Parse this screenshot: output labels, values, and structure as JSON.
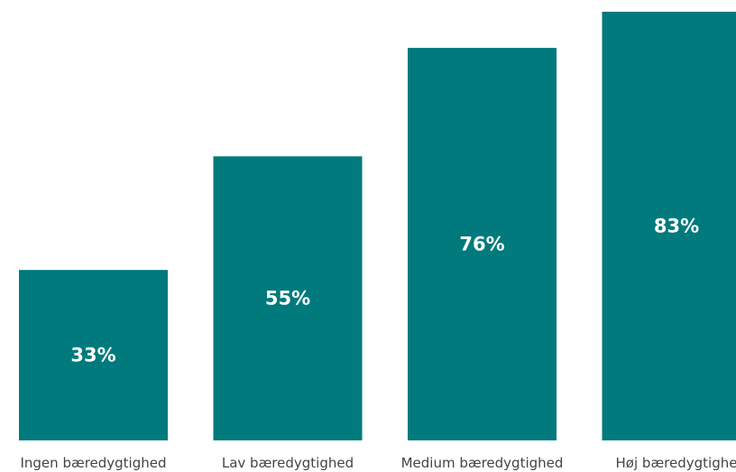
{
  "chart_data": {
    "type": "bar",
    "categories": [
      "Ingen bæredygtighed",
      "Lav bæredygtighed",
      "Medium bæredygtighed",
      "Høj bæredygtighed"
    ],
    "category_labels_shown": [
      "Ingen bæredygtighed",
      "Lav bæredygtighed",
      "Medium bæredygtighed",
      "Høj bæredygtighe"
    ],
    "values": [
      33,
      55,
      76,
      83
    ],
    "value_labels": [
      "33%",
      "55%",
      "76%",
      "83%"
    ],
    "unit": "%",
    "title": "",
    "xlabel": "",
    "ylabel": "",
    "ylim": [
      0,
      83
    ],
    "grid": false,
    "legend": "none",
    "bar_color": "#007A7C",
    "label_color": "#ffffff"
  }
}
